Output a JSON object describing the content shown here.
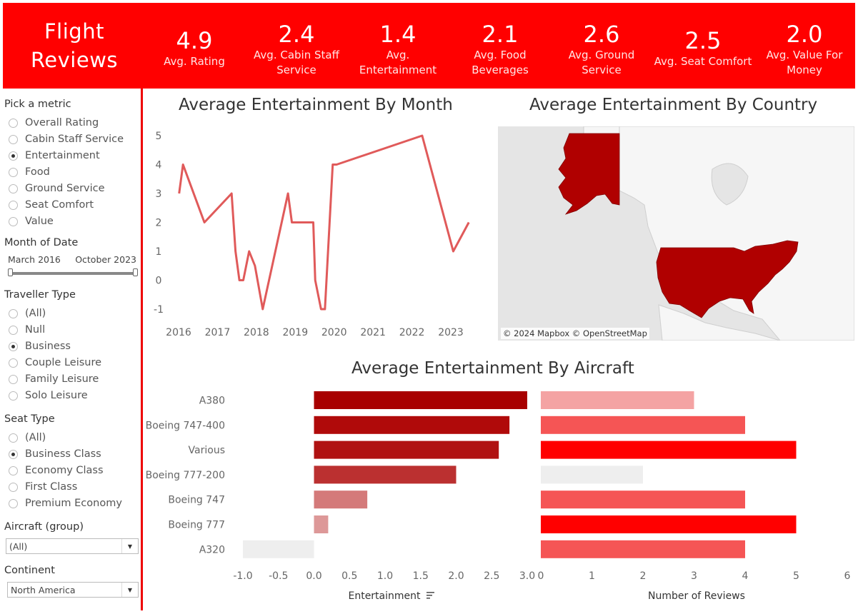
{
  "header": {
    "title_line1": "Flight",
    "title_line2": "Reviews",
    "kpis": [
      {
        "value": "4.9",
        "label": "Avg. Rating"
      },
      {
        "value": "2.4",
        "label": "Avg. Cabin Staff Service"
      },
      {
        "value": "1.4",
        "label": "Avg. Entertainment"
      },
      {
        "value": "2.1",
        "label": "Avg. Food Beverages"
      },
      {
        "value": "2.6",
        "label": "Avg. Ground Service"
      },
      {
        "value": "2.5",
        "label": "Avg. Seat Comfort"
      },
      {
        "value": "2.0",
        "label": "Avg. Value For Money"
      }
    ]
  },
  "filters": {
    "metric": {
      "title": "Pick a metric",
      "options": [
        "Overall Rating",
        "Cabin Staff Service",
        "Entertainment",
        "Food",
        "Ground Service",
        "Seat Comfort",
        "Value"
      ],
      "selected": "Entertainment"
    },
    "month": {
      "title": "Month of Date",
      "start": "March 2016",
      "end": "October 2023"
    },
    "traveller": {
      "title": "Traveller Type",
      "options": [
        "(All)",
        "Null",
        "Business",
        "Couple Leisure",
        "Family Leisure",
        "Solo Leisure"
      ],
      "selected": "Business"
    },
    "seat": {
      "title": "Seat Type",
      "options": [
        "(All)",
        "Business Class",
        "Economy Class",
        "First Class",
        "Premium Economy"
      ],
      "selected": "Business Class"
    },
    "aircraft": {
      "title": "Aircraft (group)",
      "value": "(All)"
    },
    "continent": {
      "title": "Continent",
      "value": "North America"
    }
  },
  "map": {
    "title": "Average Entertainment By Country",
    "credit": "© 2024 Mapbox © OpenStreetMap",
    "colors": {
      "highlight": "#b00000",
      "land": "#f6f6f6",
      "water": "#e5e5e5"
    }
  },
  "chart_data": [
    {
      "type": "line",
      "title": "Average Entertainment By Month",
      "color": "#e05a5a",
      "x_ticks": [
        "2016",
        "2017",
        "2018",
        "2019",
        "2020",
        "2021",
        "2022",
        "2023"
      ],
      "y_ticks": [
        "5",
        "4",
        "3",
        "2",
        "1",
        "0",
        "-1"
      ],
      "ylim": [
        -1,
        5
      ],
      "xlim": [
        2016.0,
        2023.9
      ],
      "points": [
        [
          2016.05,
          3
        ],
        [
          2016.15,
          4
        ],
        [
          2016.7,
          2
        ],
        [
          2017.4,
          3
        ],
        [
          2017.5,
          1
        ],
        [
          2017.6,
          0
        ],
        [
          2017.7,
          0
        ],
        [
          2017.85,
          1
        ],
        [
          2018.0,
          0.5
        ],
        [
          2018.2,
          -1
        ],
        [
          2018.85,
          3
        ],
        [
          2018.95,
          2
        ],
        [
          2019.5,
          2
        ],
        [
          2019.55,
          0
        ],
        [
          2019.7,
          -1
        ],
        [
          2019.8,
          -1
        ],
        [
          2020.0,
          4
        ],
        [
          2020.1,
          4
        ],
        [
          2022.3,
          5
        ],
        [
          2023.1,
          1
        ],
        [
          2023.5,
          2
        ]
      ]
    },
    {
      "type": "bar",
      "title": "Average Entertainment By Aircraft",
      "categories": [
        "A380",
        "Boeing 747-400",
        "Various",
        "Boeing 777-200",
        "Boeing 747",
        "Boeing 777",
        "A320"
      ],
      "series": [
        {
          "name": "Entertainment",
          "values": [
            3.0,
            2.75,
            2.6,
            2.0,
            0.75,
            0.2,
            -1.0
          ],
          "colors": [
            "#a80000",
            "#b00a0a",
            "#b01212",
            "#bb3030",
            "#d47a7a",
            "#dd9898",
            "#eeeeee"
          ],
          "ticks": [
            "-1.0",
            "-0.5",
            "0.0",
            "0.5",
            "1.0",
            "1.5",
            "2.0",
            "2.5",
            "3.0"
          ],
          "xlim": [
            -1.0,
            3.0
          ],
          "xlabel": "Entertainment"
        },
        {
          "name": "Number of Reviews",
          "values": [
            3,
            4,
            5,
            2,
            4,
            5,
            4
          ],
          "colors": [
            "#f4a3a3",
            "#f55555",
            "#ff0000",
            "#eeeeee",
            "#f55555",
            "#ff0000",
            "#f55555"
          ],
          "ticks": [
            "0",
            "1",
            "2",
            "3",
            "4",
            "5",
            "6"
          ],
          "xlim": [
            0,
            6
          ],
          "xlabel": "Number of Reviews"
        }
      ]
    }
  ]
}
